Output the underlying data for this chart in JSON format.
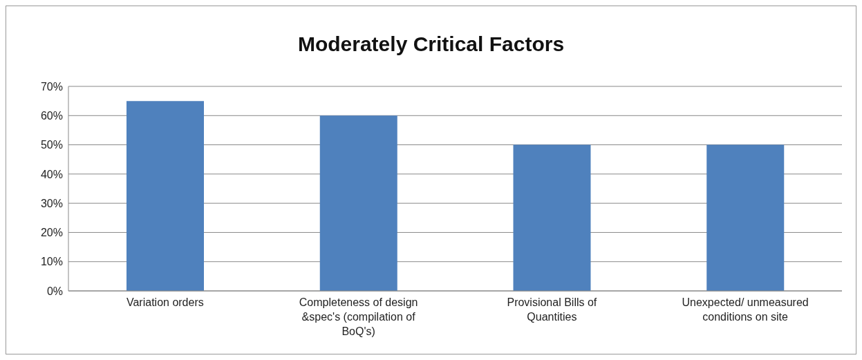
{
  "chart_data": {
    "type": "bar",
    "title": "Moderately Critical Factors",
    "categories": [
      "Variation orders",
      "Completeness of design &spec's (compilation of BoQ's)",
      "Provisional Bills of Quantities",
      "Unexpected/ unmeasured conditions on site"
    ],
    "values": [
      65,
      60,
      50,
      50
    ],
    "color": "#4f81bd",
    "ylim": [
      0,
      70
    ],
    "yticks": [
      {
        "value": 0,
        "label": "0%"
      },
      {
        "value": 10,
        "label": "10%"
      },
      {
        "value": 20,
        "label": "20%"
      },
      {
        "value": 30,
        "label": "30%"
      },
      {
        "value": 40,
        "label": "40%"
      },
      {
        "value": 50,
        "label": "50%"
      },
      {
        "value": 60,
        "label": "60%"
      },
      {
        "value": 70,
        "label": "70%"
      }
    ],
    "grid": "y",
    "legend": false
  }
}
